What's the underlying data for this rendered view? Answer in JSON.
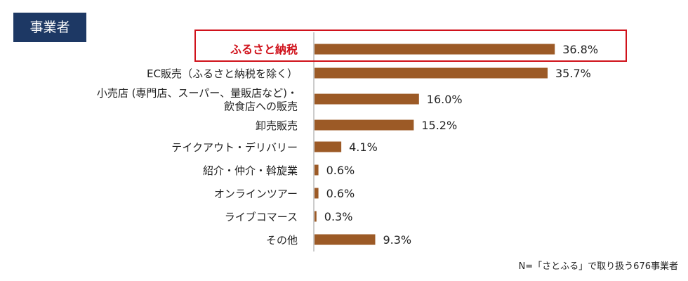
{
  "badge": "事業者",
  "footnote": "N=「さとふる」で取り扱う676事業者",
  "chart_data": {
    "type": "bar",
    "orientation": "horizontal",
    "unit": "%",
    "highlight_color": "#d0121b",
    "bar_color": "#9c5a26",
    "categories": [
      [
        "ふるさと納税"
      ],
      [
        "EC販売（ふるさと納税を除く）"
      ],
      [
        "小売店 (専門店、スーパー、量販店など)・",
        "飲食店への販売"
      ],
      [
        "卸売販売"
      ],
      [
        "テイクアウト・デリバリー"
      ],
      [
        "紹介・仲介・斡旋業"
      ],
      [
        "オンラインツアー"
      ],
      [
        "ライブコマース"
      ],
      [
        "その他"
      ]
    ],
    "values": [
      36.8,
      35.7,
      16.0,
      15.2,
      4.1,
      0.6,
      0.6,
      0.3,
      9.3
    ],
    "value_labels": [
      "36.8%",
      "35.7%",
      "16.0%",
      "15.2%",
      "4.1%",
      "0.6%",
      "0.6%",
      "0.3%",
      "9.3%"
    ],
    "highlight_index": 0
  }
}
